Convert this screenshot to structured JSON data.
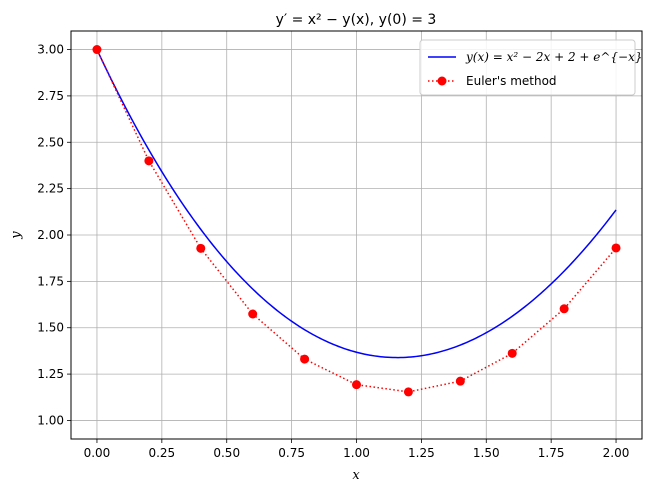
{
  "chart_data": {
    "type": "line",
    "title": "y′ = x² − y(x), y(0) = 3",
    "xlabel": "x",
    "ylabel": "y",
    "xlim": [
      -0.1,
      2.1
    ],
    "ylim": [
      0.9,
      3.1
    ],
    "xticks": [
      "0.00",
      "0.25",
      "0.50",
      "0.75",
      "1.00",
      "1.25",
      "1.50",
      "1.75",
      "2.00"
    ],
    "yticks": [
      "1.00",
      "1.25",
      "1.50",
      "1.75",
      "2.00",
      "2.25",
      "2.50",
      "2.75",
      "3.00"
    ],
    "grid": true,
    "legend_position": "top-right",
    "series": [
      {
        "name": "y(x) = x² − 2x + 2 + e^{−x}",
        "style": "solid",
        "color": "#0000ff",
        "x": [
          0,
          0.1,
          0.2,
          0.3,
          0.4,
          0.5,
          0.6,
          0.7,
          0.8,
          0.9,
          1.0,
          1.1,
          1.2,
          1.3,
          1.4,
          1.5,
          1.6,
          1.7,
          1.8,
          1.9,
          2.0
        ],
        "y": [
          3.0,
          2.715,
          2.459,
          2.231,
          2.03,
          1.857,
          1.709,
          1.587,
          1.489,
          1.417,
          1.368,
          1.343,
          1.341,
          1.363,
          1.407,
          1.473,
          1.562,
          1.673,
          1.805,
          1.96,
          2.135
        ]
      },
      {
        "name": "Euler's method",
        "style": "dotted",
        "marker": "circle",
        "color": "#ff0000",
        "x": [
          0,
          0.2,
          0.4,
          0.6,
          0.8,
          1.0,
          1.2,
          1.4,
          1.6,
          1.8,
          2.0
        ],
        "y": [
          3.0,
          2.4,
          1.928,
          1.574,
          1.331,
          1.193,
          1.154,
          1.212,
          1.362,
          1.602,
          1.93
        ]
      }
    ]
  }
}
